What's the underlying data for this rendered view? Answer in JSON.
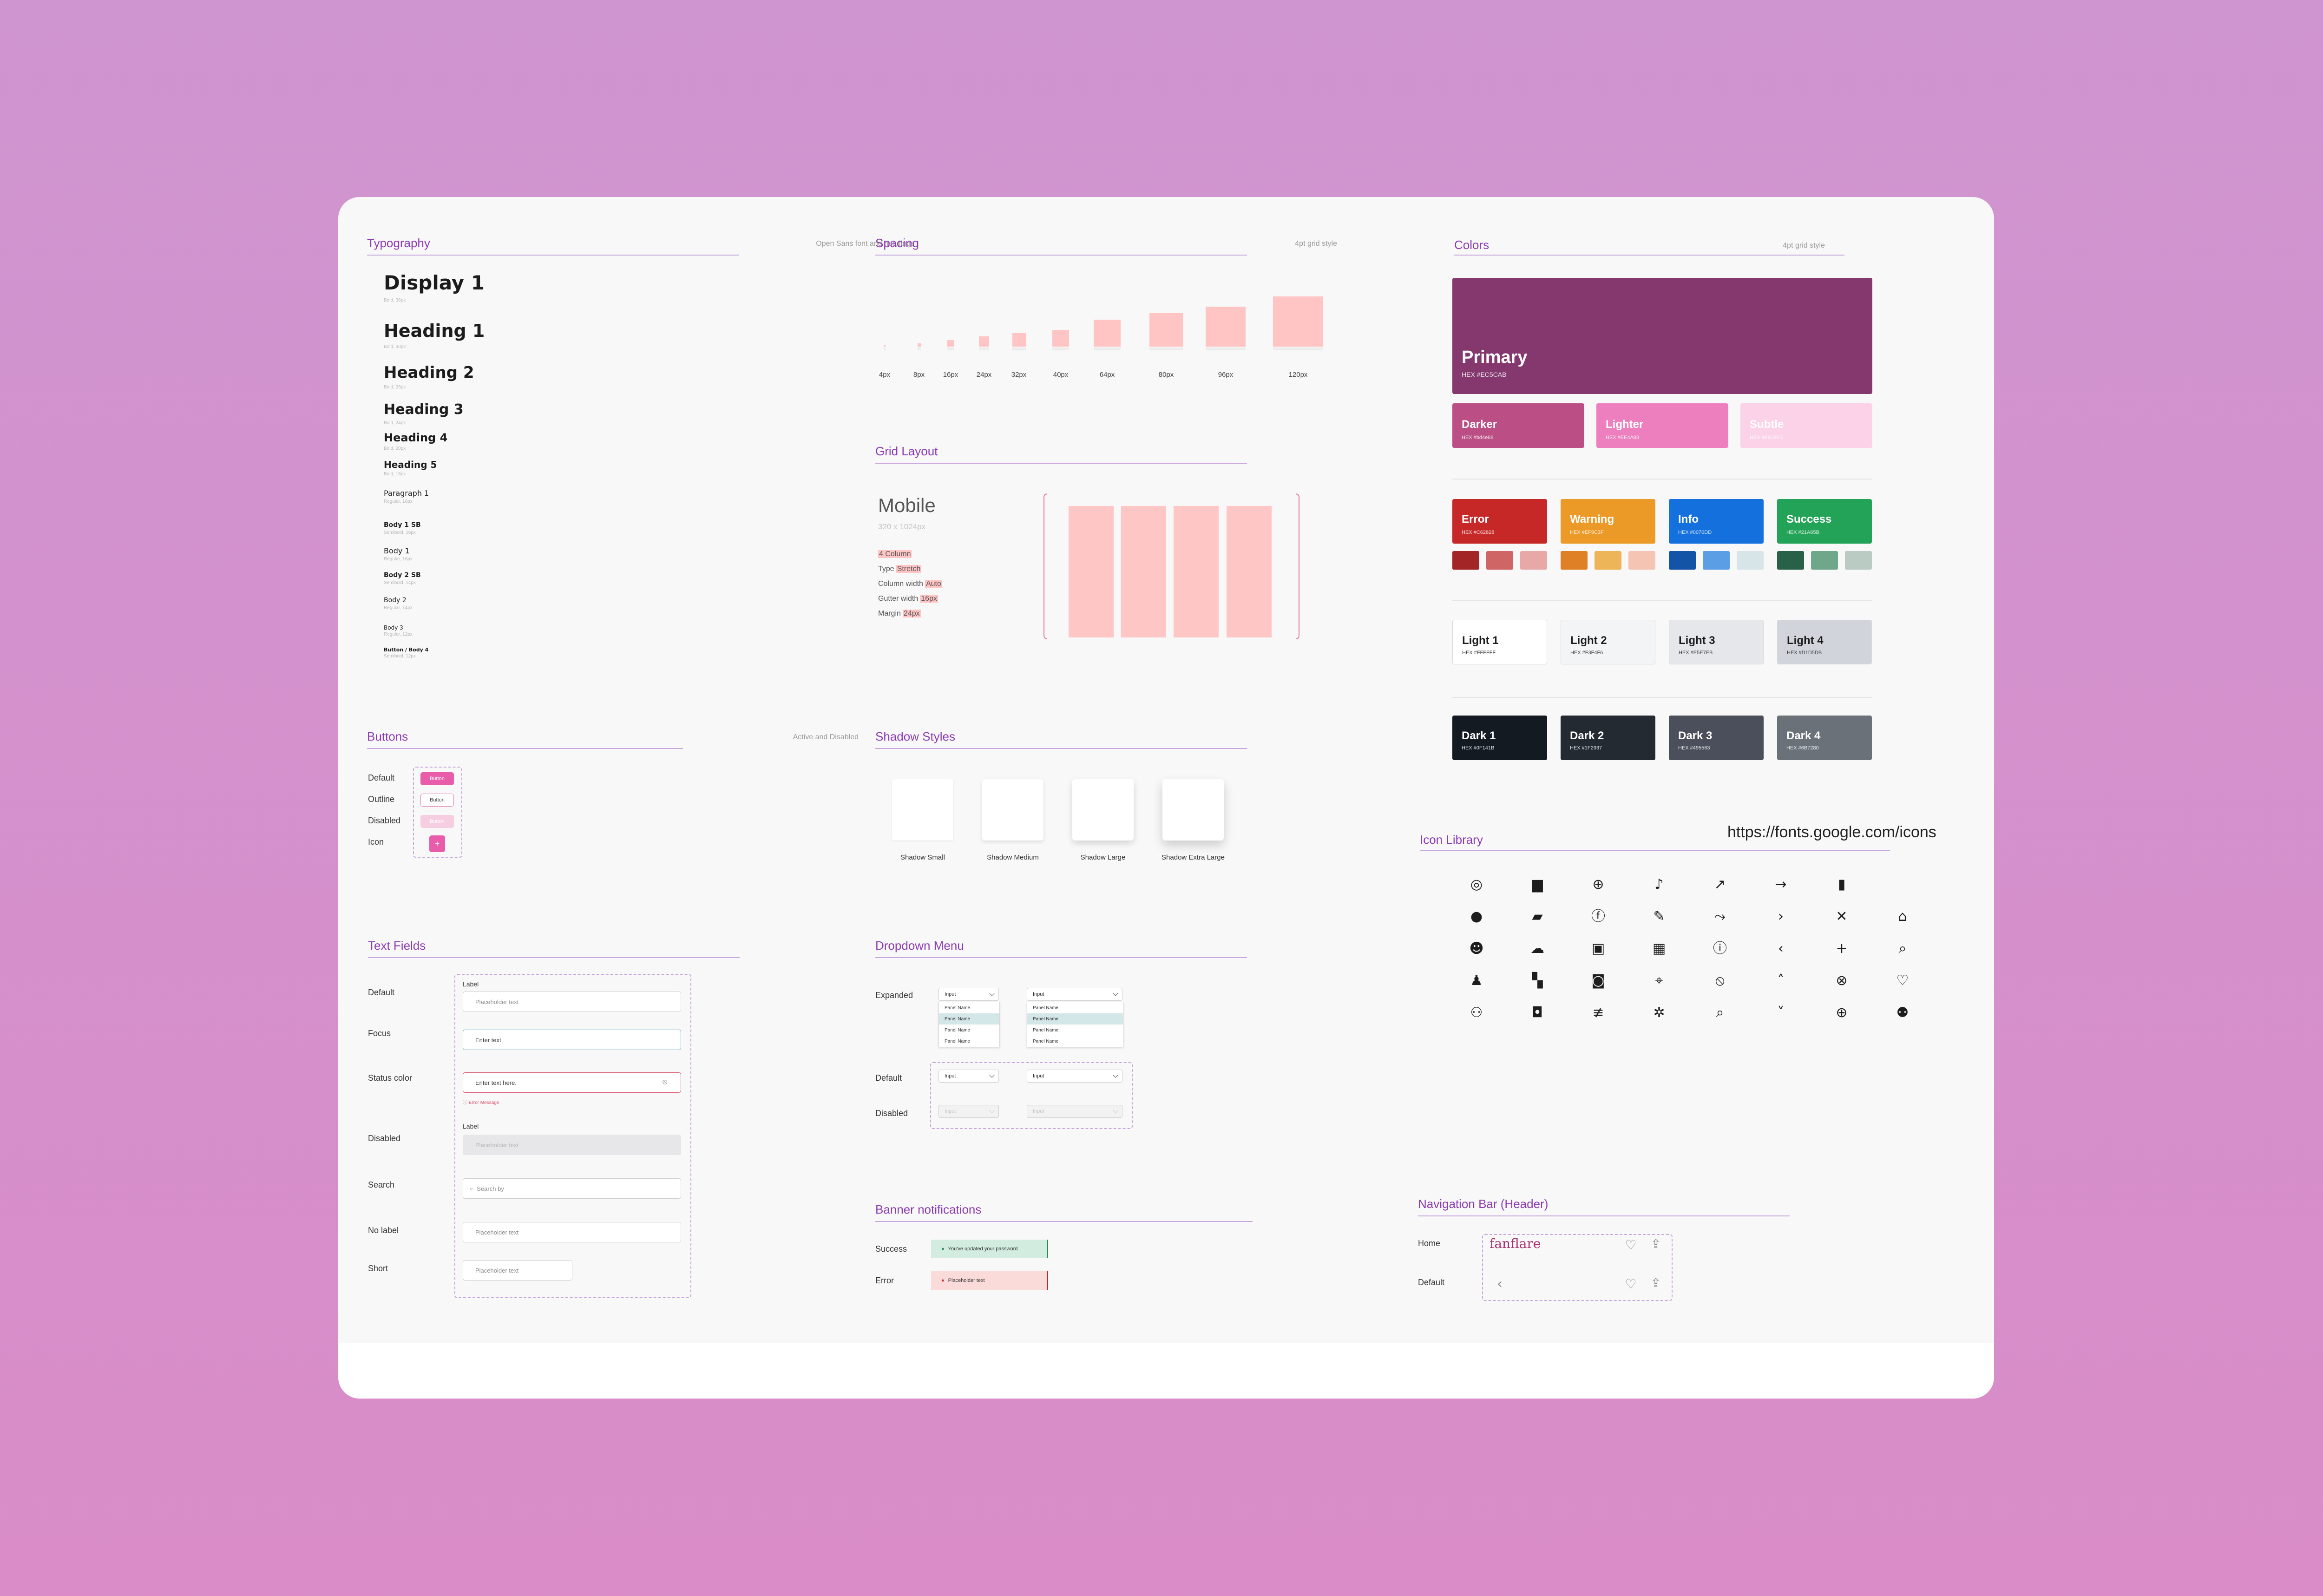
{
  "typography": {
    "title": "Typography",
    "note": "Open Sans font and headings",
    "items": [
      {
        "label": "Display 1",
        "meta": "Bold, 36px"
      },
      {
        "label": "Heading 1",
        "meta": "Bold, 30px"
      },
      {
        "label": "Heading 2",
        "meta": "Bold, 26px"
      },
      {
        "label": "Heading 3",
        "meta": "Bold, 24px"
      },
      {
        "label": "Heading 4",
        "meta": "Bold, 20px"
      },
      {
        "label": "Heading 5",
        "meta": "Bold, 18px"
      },
      {
        "label": "Paragraph 1",
        "meta": "Regular, 16px"
      },
      {
        "label": "Body 1 SB",
        "meta": "Semibold, 16px"
      },
      {
        "label": "Body 1",
        "meta": "Regular, 16px"
      },
      {
        "label": "Body 2 SB",
        "meta": "Semibold, 14px"
      },
      {
        "label": "Body 2",
        "meta": "Regular, 14px"
      },
      {
        "label": "Body 3",
        "meta": "Regular, 12px"
      },
      {
        "label": "Button / Body 4",
        "meta": "Semibold, 12px"
      }
    ]
  },
  "spacing": {
    "title": "Spacing",
    "note": "4pt grid style",
    "values": [
      "4px",
      "8px",
      "16px",
      "24px",
      "32px",
      "40px",
      "64px",
      "80px",
      "96px",
      "120px"
    ]
  },
  "grid_layout": {
    "title": "Grid Layout",
    "device": "Mobile",
    "size": "320 x 1024px",
    "specs": [
      {
        "key": "",
        "value": "4 Column"
      },
      {
        "key": "Type",
        "value": "Stretch"
      },
      {
        "key": "Column width",
        "value": "Auto"
      },
      {
        "key": "Gutter width",
        "value": "16px"
      },
      {
        "key": "Margin",
        "value": "24px"
      }
    ]
  },
  "colors": {
    "title": "Colors",
    "note": "4pt grid style",
    "primary": {
      "name": "Primary",
      "hex": "HEX #EC5CAB",
      "color": "#84386e"
    },
    "primary_variants": [
      {
        "name": "Darker",
        "hex": "HEX #bd4e88",
        "color": "#bb4e84"
      },
      {
        "name": "Lighter",
        "hex": "HEX #EE4A88",
        "color": "#ee7fbe"
      },
      {
        "name": "Subtle",
        "hex": "HEX #F9CFE6",
        "color": "#fbd2e8"
      }
    ],
    "status": [
      {
        "name": "Error",
        "hex": "HEX #C62828",
        "color": "#c62828",
        "tints": [
          "#a42525",
          "#d06565",
          "#e8a8a8"
        ]
      },
      {
        "name": "Warning",
        "hex": "HEX #EF9C3F",
        "color": "#eb9a27",
        "tints": [
          "#e08026",
          "#eeb558",
          "#f6c4b3"
        ]
      },
      {
        "name": "Info",
        "hex": "HEX #0070DD",
        "color": "#1370dd",
        "tints": [
          "#1454a7",
          "#5b9ee6",
          "#d8e5e8"
        ]
      },
      {
        "name": "Success",
        "hex": "HEX #21A65B",
        "color": "#23a357",
        "tints": [
          "#296048",
          "#6fa78a",
          "#bacbc4"
        ]
      }
    ],
    "lights": [
      {
        "name": "Light 1",
        "hex": "HEX #FFFFFF",
        "color": "#ffffff"
      },
      {
        "name": "Light 2",
        "hex": "HEX #F3F4F6",
        "color": "#f3f4f6"
      },
      {
        "name": "Light 3",
        "hex": "HEX #E5E7EB",
        "color": "#e5e7eb"
      },
      {
        "name": "Light 4",
        "hex": "HEX #D1D5DB",
        "color": "#d1d5db"
      }
    ],
    "darks": [
      {
        "name": "Dark 1",
        "hex": "HEX #0F141B",
        "color": "#141a22"
      },
      {
        "name": "Dark 2",
        "hex": "HEX #1F2937",
        "color": "#232a32"
      },
      {
        "name": "Dark 3",
        "hex": "HEX #495563",
        "color": "#4a4f5b"
      },
      {
        "name": "Dark 4",
        "hex": "HEX #6B7280",
        "color": "#6a7179"
      }
    ]
  },
  "buttons": {
    "title": "Buttons",
    "note": "Active and Disabled",
    "rows": [
      {
        "label": "Default",
        "text": "Button"
      },
      {
        "label": "Outline",
        "text": "Button"
      },
      {
        "label": "Disabled",
        "text": "Button"
      },
      {
        "label": "Icon",
        "text": "+"
      }
    ]
  },
  "shadow_styles": {
    "title": "Shadow Styles",
    "items": [
      "Shadow Small",
      "Shadow Medium",
      "Shadow Large",
      "Shadow Extra Large"
    ]
  },
  "icon_library": {
    "title": "Icon Library",
    "url": "https://fonts.google.com/icons",
    "icons": [
      [
        "account-circle-icon",
        "chat-icon",
        "globe-icon",
        "bell-icon",
        "trending-up-icon",
        "arrow-right-icon",
        "trash-icon"
      ],
      [
        "account-filled-icon",
        "folder-add-icon",
        "facebook-icon",
        "pencil-icon",
        "trending-icon",
        "chevron-right-icon",
        "close-icon",
        "home-icon"
      ],
      [
        "emoji-icon",
        "cloud-upload-icon",
        "linkedin-icon",
        "calendar-icon",
        "info-icon",
        "chevron-left-icon",
        "plus-icon",
        "search-icon"
      ],
      [
        "person-icon",
        "dashboard-icon",
        "instagram-icon",
        "location-icon",
        "eye-off-icon",
        "chevron-up-icon",
        "cancel-icon",
        "heart-icon"
      ],
      [
        "person-add-icon",
        "add-photo-icon",
        "tune-icon",
        "settings-icon",
        "search-icon",
        "chevron-down-icon",
        "add-circle-icon",
        "group-icon"
      ]
    ]
  },
  "text_fields": {
    "title": "Text Fields",
    "label": "Label",
    "rows": [
      {
        "label": "Default",
        "value": "Placeholder text"
      },
      {
        "label": "Focus",
        "value": "Enter text"
      },
      {
        "label": "Status color",
        "value": "Enter text here.",
        "error": "Error Message"
      },
      {
        "label": "Disabled",
        "value": "Placeholder text"
      },
      {
        "label": "Search",
        "value": "Search by"
      },
      {
        "label": "No label",
        "value": "Placeholder text"
      },
      {
        "label": "Short",
        "value": "Placeholder text"
      }
    ]
  },
  "dropdown": {
    "title": "Dropdown Menu",
    "rows": [
      "Expanded",
      "Default",
      "Disabled"
    ],
    "input": "Input",
    "options": [
      "Panel Name",
      "Panel Name",
      "Panel Name",
      "Panel Name"
    ]
  },
  "banners": {
    "title": "Banner notifications",
    "rows": [
      {
        "label": "Success",
        "text": "You've updated your password"
      },
      {
        "label": "Error",
        "text": "Placeholder text"
      }
    ]
  },
  "navbar": {
    "title": "Navigation Bar (Header)",
    "rows": [
      {
        "label": "Home",
        "brand": "fanflare"
      },
      {
        "label": "Default",
        "brand": ""
      }
    ]
  }
}
